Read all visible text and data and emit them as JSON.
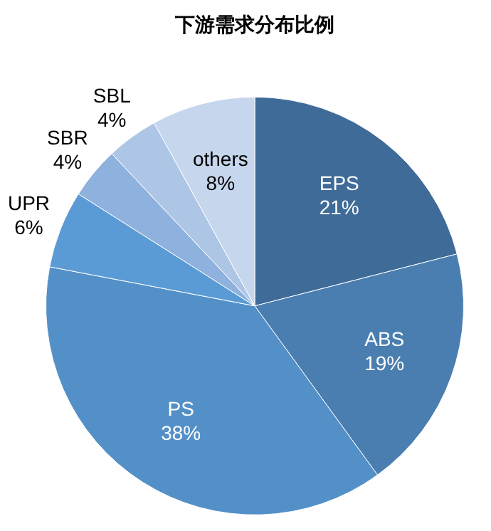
{
  "chart_data": {
    "type": "pie",
    "title": "下游需求分布比例",
    "categories": [
      "EPS",
      "ABS",
      "PS",
      "UPR",
      "SBR",
      "SBL",
      "others"
    ],
    "values": [
      21,
      19,
      38,
      6,
      4,
      4,
      8
    ],
    "value_labels": [
      "21%",
      "19%",
      "38%",
      "6%",
      "4%",
      "4%",
      "8%"
    ],
    "colors": [
      "#3f6b98",
      "#4a7eb0",
      "#5390c8",
      "#5b9bd5",
      "#8eb1dd",
      "#aec6e6",
      "#c5d6ed"
    ],
    "legend": false
  }
}
